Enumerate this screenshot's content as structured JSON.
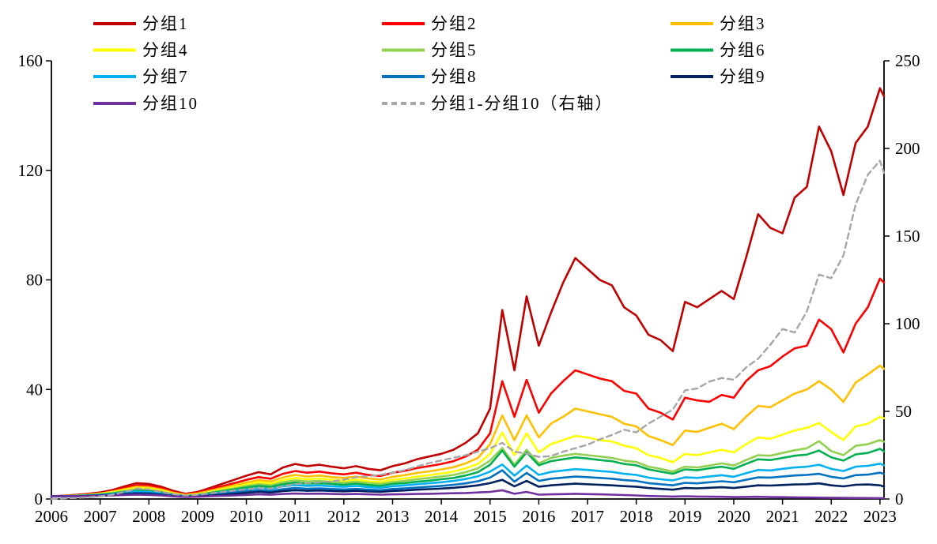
{
  "chart_data": {
    "type": "line",
    "title": "",
    "grid": false,
    "legend_position": "top",
    "background": "#FFFFFF",
    "axis_color": "#000000",
    "x_axis": {
      "min": 2006,
      "max": 2023.083,
      "ticks": [
        2006,
        2007,
        2008,
        2009,
        2010,
        2011,
        2012,
        2013,
        2014,
        2015,
        2016,
        2017,
        2018,
        2019,
        2020,
        2021,
        2022,
        2023
      ]
    },
    "left_axis": {
      "min": 0,
      "max": 160,
      "ticks": [
        0,
        40,
        80,
        120,
        160
      ]
    },
    "right_axis": {
      "min": 0,
      "max": 250,
      "ticks": [
        0,
        50,
        100,
        150,
        200,
        250
      ]
    },
    "x": [
      2006,
      2006.25,
      2006.5,
      2006.75,
      2007,
      2007.25,
      2007.5,
      2007.75,
      2008,
      2008.25,
      2008.5,
      2008.75,
      2009,
      2009.25,
      2009.5,
      2009.75,
      2010,
      2010.25,
      2010.5,
      2010.75,
      2011,
      2011.25,
      2011.5,
      2011.75,
      2012,
      2012.25,
      2012.5,
      2012.75,
      2013,
      2013.25,
      2013.5,
      2013.75,
      2014,
      2014.25,
      2014.5,
      2014.75,
      2015,
      2015.25,
      2015.5,
      2015.75,
      2016,
      2016.25,
      2016.5,
      2016.75,
      2017,
      2017.25,
      2017.5,
      2017.75,
      2018,
      2018.25,
      2018.5,
      2018.75,
      2019,
      2019.25,
      2019.5,
      2019.75,
      2020,
      2020.25,
      2020.5,
      2020.75,
      2021,
      2021.25,
      2021.5,
      2021.75,
      2022,
      2022.25,
      2022.5,
      2022.75,
      2023,
      2023.083
    ],
    "series": [
      {
        "name": "分组1",
        "color": "#C00000",
        "axis": "left",
        "dash": false,
        "values": [
          1.0,
          1.2,
          1.5,
          1.9,
          2.4,
          3.3,
          4.6,
          5.8,
          5.5,
          4.5,
          3.0,
          1.9,
          2.6,
          4.0,
          5.5,
          7.0,
          8.5,
          9.8,
          9.0,
          11.5,
          12.8,
          12.0,
          12.5,
          11.8,
          11.2,
          12.0,
          11.0,
          10.5,
          12.0,
          13.0,
          14.5,
          15.5,
          16.5,
          18.0,
          20.5,
          24.0,
          33.0,
          69.0,
          47.0,
          74.0,
          56.0,
          68.0,
          79.0,
          88.0,
          84.0,
          80.0,
          78.0,
          70.0,
          67.0,
          60.0,
          58.0,
          54.0,
          72.0,
          70.0,
          73.0,
          76.0,
          73.0,
          88.0,
          104.0,
          99.0,
          97.0,
          110.0,
          114.0,
          136.0,
          127.0,
          111.0,
          130.0,
          136.0,
          150.0,
          147.0
        ]
      },
      {
        "name": "分组2",
        "color": "#FF0000",
        "axis": "left",
        "dash": false,
        "values": [
          1.0,
          1.15,
          1.4,
          1.7,
          2.1,
          2.9,
          4.0,
          5.0,
          4.8,
          3.9,
          2.6,
          1.7,
          2.3,
          3.4,
          4.6,
          5.8,
          7.0,
          8.0,
          7.4,
          9.2,
          10.2,
          9.6,
          10.0,
          9.4,
          9.0,
          9.6,
          8.8,
          8.4,
          9.6,
          10.3,
          11.3,
          12.0,
          12.8,
          13.8,
          15.5,
          18.0,
          24.0,
          43.0,
          30.0,
          43.5,
          31.5,
          38.5,
          43.0,
          47.0,
          45.5,
          44.0,
          43.0,
          39.5,
          38.5,
          33.0,
          31.5,
          29.0,
          37.0,
          36.0,
          35.5,
          38.0,
          37.0,
          43.0,
          47.0,
          48.5,
          52.0,
          55.0,
          56.0,
          65.5,
          62.0,
          53.5,
          64.0,
          70.0,
          80.5,
          79.0
        ]
      },
      {
        "name": "分组3",
        "color": "#FFC000",
        "axis": "left",
        "dash": false,
        "values": [
          1.0,
          1.1,
          1.3,
          1.6,
          2.0,
          2.7,
          3.6,
          4.5,
          4.3,
          3.5,
          2.3,
          1.5,
          2.0,
          3.0,
          4.0,
          5.0,
          6.0,
          6.9,
          6.4,
          7.9,
          8.8,
          8.2,
          8.6,
          8.0,
          7.7,
          8.2,
          7.5,
          7.1,
          8.1,
          8.7,
          9.5,
          10.1,
          10.8,
          11.6,
          13.0,
          15.0,
          20.0,
          30.5,
          21.5,
          30.5,
          22.5,
          27.5,
          30.0,
          33.0,
          32.0,
          31.0,
          30.0,
          27.5,
          26.5,
          23.0,
          21.5,
          19.7,
          25.0,
          24.5,
          26.0,
          27.5,
          25.5,
          30.0,
          34.0,
          33.5,
          36.0,
          38.5,
          40.0,
          43.0,
          40.0,
          35.5,
          42.5,
          45.5,
          48.7,
          47.5
        ]
      },
      {
        "name": "分组4",
        "color": "#FFFF00",
        "axis": "left",
        "dash": false,
        "values": [
          1.0,
          1.1,
          1.25,
          1.5,
          1.9,
          2.5,
          3.3,
          4.0,
          3.8,
          3.1,
          2.0,
          1.3,
          1.8,
          2.6,
          3.5,
          4.4,
          5.3,
          6.1,
          5.6,
          6.9,
          7.7,
          7.2,
          7.5,
          7.0,
          6.7,
          7.1,
          6.5,
          6.2,
          7.0,
          7.5,
          8.2,
          8.7,
          9.3,
          10.0,
          11.2,
          12.8,
          16.5,
          24.3,
          16.0,
          24.0,
          17.0,
          20.0,
          21.5,
          23.0,
          22.5,
          21.5,
          21.0,
          19.5,
          18.5,
          16.0,
          15.0,
          13.4,
          16.5,
          16.0,
          17.0,
          18.0,
          17.0,
          20.0,
          22.5,
          22.0,
          23.5,
          25.0,
          26.0,
          27.7,
          24.5,
          21.5,
          26.5,
          27.5,
          30.0,
          29.5
        ]
      },
      {
        "name": "分组5",
        "color": "#92D050",
        "axis": "left",
        "dash": false,
        "values": [
          1.0,
          1.05,
          1.2,
          1.4,
          1.7,
          2.2,
          2.9,
          3.5,
          3.3,
          2.7,
          1.8,
          1.2,
          1.6,
          2.3,
          3.1,
          3.9,
          4.7,
          5.4,
          5.0,
          6.1,
          6.8,
          6.4,
          6.6,
          6.2,
          5.9,
          6.3,
          5.8,
          5.5,
          6.2,
          6.6,
          7.2,
          7.7,
          8.2,
          8.8,
          9.8,
          11.2,
          14.0,
          18.6,
          12.5,
          18.0,
          13.0,
          15.0,
          15.8,
          16.5,
          16.0,
          15.5,
          15.0,
          14.0,
          13.5,
          11.8,
          11.0,
          10.0,
          11.8,
          11.5,
          12.2,
          13.0,
          12.2,
          14.2,
          16.0,
          15.8,
          16.8,
          17.8,
          18.5,
          21.1,
          17.5,
          16.0,
          19.4,
          20.0,
          21.5,
          20.9
        ]
      },
      {
        "name": "分组6",
        "color": "#00B050",
        "axis": "left",
        "dash": false,
        "values": [
          1.0,
          1.05,
          1.15,
          1.3,
          1.6,
          2.0,
          2.6,
          3.1,
          2.9,
          2.4,
          1.6,
          1.1,
          1.4,
          2.1,
          2.8,
          3.5,
          4.2,
          4.8,
          4.4,
          5.4,
          6.0,
          5.6,
          5.8,
          5.5,
          5.2,
          5.6,
          5.1,
          4.8,
          5.5,
          5.8,
          6.3,
          6.7,
          7.2,
          7.7,
          8.6,
          9.8,
          12.5,
          17.7,
          11.8,
          17.0,
          12.3,
          13.8,
          14.5,
          15.2,
          14.8,
          14.2,
          13.8,
          12.8,
          12.3,
          10.8,
          10.0,
          9.2,
          10.8,
          10.5,
          11.2,
          11.8,
          11.0,
          12.8,
          14.5,
          14.2,
          15.0,
          15.8,
          16.2,
          17.7,
          15.2,
          14.0,
          16.3,
          16.8,
          18.3,
          17.4
        ]
      },
      {
        "name": "分组7",
        "color": "#00B0F0",
        "axis": "left",
        "dash": false,
        "values": [
          1.0,
          1.0,
          1.1,
          1.25,
          1.5,
          1.85,
          2.3,
          2.7,
          2.5,
          2.1,
          1.4,
          1.0,
          1.2,
          1.75,
          2.35,
          2.95,
          3.55,
          4.05,
          3.7,
          4.6,
          5.1,
          4.8,
          4.95,
          4.65,
          4.45,
          4.75,
          4.35,
          4.1,
          4.65,
          4.95,
          5.4,
          5.75,
          6.1,
          6.6,
          7.3,
          8.3,
          10.0,
          12.6,
          8.5,
          12.2,
          8.8,
          9.9,
          10.4,
          10.9,
          10.6,
          10.2,
          9.9,
          9.2,
          8.8,
          7.8,
          7.2,
          6.8,
          7.9,
          7.7,
          8.2,
          8.7,
          8.1,
          9.4,
          10.6,
          10.4,
          11.0,
          11.5,
          11.8,
          12.5,
          11.0,
          10.2,
          11.8,
          12.1,
          12.9,
          12.3
        ]
      },
      {
        "name": "分组8",
        "color": "#0070C0",
        "axis": "left",
        "dash": false,
        "values": [
          1.0,
          1.0,
          1.05,
          1.2,
          1.4,
          1.7,
          2.0,
          2.3,
          2.2,
          1.8,
          1.2,
          0.9,
          1.1,
          1.5,
          1.9,
          2.35,
          2.8,
          3.2,
          2.9,
          3.6,
          4.0,
          3.75,
          3.9,
          3.65,
          3.5,
          3.7,
          3.4,
          3.2,
          3.65,
          3.9,
          4.2,
          4.5,
          4.8,
          5.2,
          5.7,
          6.5,
          7.8,
          10.5,
          6.3,
          9.5,
          6.6,
          7.4,
          7.8,
          8.2,
          8.0,
          7.7,
          7.4,
          6.9,
          6.6,
          5.8,
          5.4,
          5.0,
          5.9,
          5.7,
          6.1,
          6.5,
          6.1,
          7.0,
          7.9,
          7.8,
          8.2,
          8.6,
          8.8,
          9.2,
          8.1,
          7.5,
          8.7,
          8.9,
          9.6,
          9.2
        ]
      },
      {
        "name": "分组9",
        "color": "#002060",
        "axis": "left",
        "dash": false,
        "values": [
          1.0,
          1.0,
          1.0,
          1.1,
          1.25,
          1.45,
          1.7,
          1.9,
          1.8,
          1.5,
          1.05,
          0.8,
          0.95,
          1.2,
          1.5,
          1.85,
          2.25,
          2.6,
          2.35,
          2.9,
          3.2,
          3.0,
          3.1,
          2.95,
          2.8,
          3.0,
          2.75,
          2.6,
          2.95,
          3.1,
          3.4,
          3.6,
          3.8,
          4.1,
          4.5,
          5.0,
          5.8,
          7.0,
          4.6,
          6.6,
          4.5,
          5.0,
          5.3,
          5.6,
          5.4,
          5.2,
          5.0,
          4.7,
          4.5,
          4.0,
          3.7,
          3.4,
          4.0,
          3.9,
          4.1,
          4.3,
          4.0,
          4.5,
          5.0,
          4.9,
          5.1,
          5.3,
          5.4,
          5.7,
          5.0,
          4.6,
          5.2,
          5.3,
          5.0,
          4.5
        ]
      },
      {
        "name": "分组10",
        "color": "#7030A0",
        "axis": "left",
        "dash": false,
        "values": [
          1.0,
          1.0,
          1.0,
          1.05,
          1.15,
          1.3,
          1.45,
          1.6,
          1.5,
          1.3,
          0.95,
          0.75,
          0.85,
          1.0,
          1.15,
          1.3,
          1.5,
          1.7,
          1.55,
          1.85,
          2.0,
          1.9,
          1.95,
          1.85,
          1.75,
          1.85,
          1.7,
          1.6,
          1.7,
          1.75,
          1.85,
          1.9,
          2.0,
          2.1,
          2.2,
          2.4,
          2.6,
          3.2,
          1.9,
          2.6,
          1.6,
          1.7,
          1.8,
          1.9,
          1.8,
          1.7,
          1.6,
          1.45,
          1.3,
          1.1,
          1.0,
          0.9,
          1.0,
          0.9,
          0.85,
          0.8,
          0.7,
          0.75,
          0.8,
          0.7,
          0.65,
          0.6,
          0.55,
          0.5,
          0.45,
          0.4,
          0.38,
          0.35,
          0.32,
          0.3
        ]
      },
      {
        "name": "分组1-分组10（右轴）",
        "color": "#A6A6A6",
        "axis": "right",
        "dash": true,
        "values": [
          0.0,
          0.3,
          0.6,
          1.0,
          1.5,
          2.5,
          4.0,
          6.0,
          5.5,
          4.0,
          2.8,
          2.0,
          2.4,
          3.2,
          4.0,
          4.8,
          5.6,
          6.3,
          6.0,
          7.2,
          8.5,
          9.0,
          9.5,
          10.0,
          11.0,
          12.5,
          13.0,
          13.8,
          15.0,
          16.5,
          18.5,
          20.5,
          22.0,
          23.5,
          25.0,
          27.0,
          29.0,
          32.0,
          27.0,
          26.0,
          24.0,
          24.5,
          27.0,
          29.0,
          31.0,
          34.0,
          36.5,
          39.5,
          38.0,
          43.0,
          47.0,
          51.0,
          62.0,
          63.0,
          67.0,
          69.0,
          68.0,
          75.0,
          80.0,
          88.0,
          97.0,
          95.0,
          107.0,
          128.0,
          126.0,
          139.0,
          168.0,
          185.0,
          193.0,
          186.0
        ]
      }
    ]
  }
}
